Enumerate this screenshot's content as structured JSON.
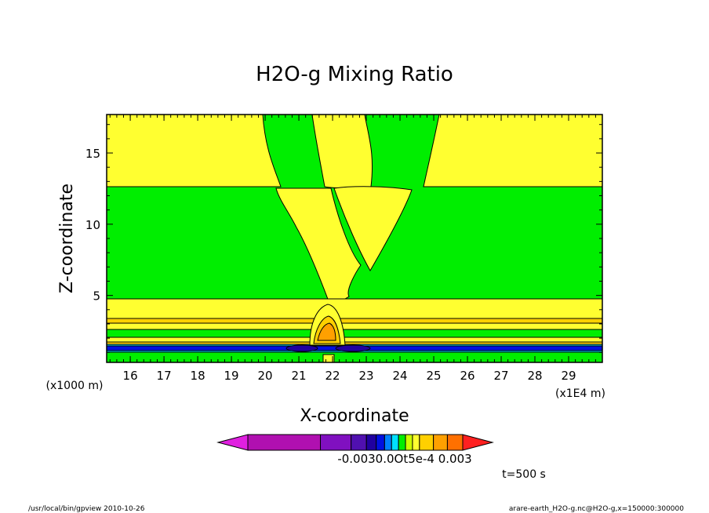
{
  "chart_data": {
    "type": "contour",
    "title": "H2O-g Mixing Ratio",
    "xlabel": "X-coordinate",
    "ylabel": "Z-coordinate",
    "x_unit": "(x1E4 m)",
    "y_unit": "(x1000 m)",
    "xlim": [
      15.3,
      30.0
    ],
    "ylim": [
      0.3,
      17.7
    ],
    "x_ticks": [
      "16",
      "17",
      "18",
      "19",
      "20",
      "21",
      "22",
      "23",
      "24",
      "25",
      "26",
      "27",
      "28",
      "29"
    ],
    "y_ticks": [
      "5",
      "10",
      "15"
    ],
    "x_tick_values": [
      16,
      17,
      18,
      19,
      20,
      21,
      22,
      23,
      24,
      25,
      26,
      27,
      28,
      29
    ],
    "y_tick_values": [
      5,
      10,
      15
    ],
    "colorbar": {
      "labels": [
        "-0.003",
        "0.0Ot",
        "5e-4",
        "0.003"
      ],
      "label_text": "-0.0030.0Ot5e-4  0.003",
      "colors": [
        "#e020e0",
        "#b010b0",
        "#8010c0",
        "#5010b0",
        "#2000a0",
        "#0010e0",
        "#0080ff",
        "#00e0ff",
        "#00ee00",
        "#ccff00",
        "#ffff30",
        "#ffd000",
        "#ffa000",
        "#ff7000",
        "#ff2020"
      ]
    },
    "annotation": "t=500 s",
    "footer_left": "/usr/local/bin/gpview   2010-10-26",
    "footer_right": "arare-earth_H2O-g.nc@H2O-g,x=150000:300000",
    "fill_colors": {
      "yellow": "#ffff30",
      "green": "#00ee00",
      "gold": "#ffd000",
      "orange": "#ffa000",
      "blue": "#0010e0",
      "navy": "#2000a0",
      "cyan": "#00e0ff"
    }
  }
}
